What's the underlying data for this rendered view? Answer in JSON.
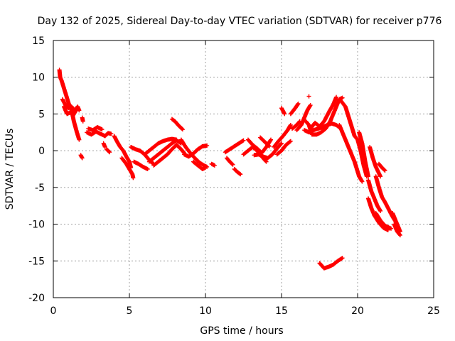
{
  "chart_data": {
    "type": "scatter",
    "title": "Day 132 of 2025, Sidereal Day-to-day VTEC variation (SDTVAR) for receiver p776",
    "xlabel": "GPS time / hours",
    "ylabel": "SDTVAR / TECUs",
    "xlim": [
      0,
      25
    ],
    "ylim": [
      -20,
      15
    ],
    "xticks": [
      0,
      5,
      10,
      15,
      20,
      25
    ],
    "yticks": [
      15,
      10,
      5,
      0,
      -5,
      -10,
      -15,
      -20
    ],
    "grid": true,
    "marker": "+",
    "color": "#ff0000",
    "series": [
      {
        "name": "SDTVAR",
        "tracks": [
          [
            [
              0.4,
              11
            ],
            [
              0.45,
              10
            ],
            [
              0.55,
              9.5
            ],
            [
              0.7,
              8.5
            ],
            [
              0.85,
              7.5
            ],
            [
              1.0,
              6.5
            ],
            [
              1.2,
              5.5
            ],
            [
              1.35,
              4
            ],
            [
              1.55,
              2.5
            ],
            [
              1.7,
              1.5
            ]
          ],
          [
            [
              0.6,
              7
            ],
            [
              0.8,
              6.2
            ],
            [
              1.0,
              5.8
            ],
            [
              1.2,
              6.0
            ],
            [
              1.4,
              5.5
            ],
            [
              1.6,
              6.0
            ],
            [
              1.7,
              5.5
            ]
          ],
          [
            [
              0.7,
              6
            ],
            [
              0.9,
              5
            ],
            [
              1.1,
              5.2
            ],
            [
              1.3,
              4.8
            ],
            [
              1.5,
              5.5
            ]
          ],
          [
            [
              1.9,
              4.5
            ],
            [
              1.95,
              4.0
            ]
          ],
          [
            [
              1.8,
              -0.6
            ],
            [
              1.9,
              -1.0
            ]
          ],
          [
            [
              2.2,
              2.5
            ],
            [
              2.5,
              2.2
            ],
            [
              2.8,
              2.6
            ],
            [
              3.1,
              2.3
            ],
            [
              3.4,
              2.0
            ],
            [
              3.6,
              2.4
            ],
            [
              3.8,
              2.3
            ]
          ],
          [
            [
              2.3,
              3.0
            ],
            [
              2.6,
              2.8
            ],
            [
              2.9,
              3.2
            ],
            [
              3.2,
              2.9
            ]
          ],
          [
            [
              3.3,
              1.0
            ],
            [
              3.4,
              0.5
            ]
          ],
          [
            [
              3.5,
              0.2
            ],
            [
              3.7,
              -0.2
            ]
          ],
          [
            [
              4.0,
              2.0
            ],
            [
              4.2,
              1.2
            ],
            [
              4.4,
              0.5
            ],
            [
              4.6,
              0.0
            ],
            [
              4.8,
              -0.8
            ],
            [
              5.0,
              -1.5
            ],
            [
              5.1,
              -2.3
            ]
          ],
          [
            [
              4.5,
              -1.0
            ],
            [
              4.8,
              -1.8
            ],
            [
              5.0,
              -2.5
            ],
            [
              5.2,
              -3.2
            ],
            [
              5.25,
              -3.7
            ]
          ],
          [
            [
              5.1,
              0.5
            ],
            [
              5.4,
              0.2
            ],
            [
              5.7,
              0.0
            ],
            [
              6.0,
              -0.5
            ],
            [
              6.2,
              -1.0
            ],
            [
              6.4,
              -1.5
            ],
            [
              6.6,
              -1.8
            ]
          ],
          [
            [
              5.3,
              -1.5
            ],
            [
              5.6,
              -1.8
            ],
            [
              5.9,
              -2.2
            ],
            [
              6.2,
              -2.5
            ]
          ],
          [
            [
              6.0,
              -0.5
            ],
            [
              6.3,
              0.0
            ],
            [
              6.6,
              0.5
            ],
            [
              6.9,
              1.0
            ],
            [
              7.2,
              1.3
            ],
            [
              7.5,
              1.5
            ],
            [
              7.8,
              1.6
            ],
            [
              8.1,
              1.5
            ]
          ],
          [
            [
              6.3,
              -1.5
            ],
            [
              6.6,
              -1.0
            ],
            [
              6.9,
              -0.5
            ],
            [
              7.2,
              0.0
            ],
            [
              7.5,
              0.5
            ],
            [
              7.8,
              1.0
            ],
            [
              8.1,
              1.4
            ],
            [
              8.4,
              1.0
            ]
          ],
          [
            [
              6.6,
              -2.0
            ],
            [
              6.9,
              -1.5
            ],
            [
              7.2,
              -1.0
            ],
            [
              7.5,
              -0.5
            ],
            [
              7.8,
              0.2
            ],
            [
              8.1,
              0.8
            ],
            [
              8.4,
              0.2
            ],
            [
              8.6,
              -0.3
            ]
          ],
          [
            [
              7.8,
              4.3
            ],
            [
              8.0,
              4.0
            ],
            [
              8.2,
              3.5
            ],
            [
              8.5,
              2.9
            ]
          ],
          [
            [
              8.4,
              1.5
            ],
            [
              8.7,
              0.5
            ],
            [
              9.0,
              -0.3
            ],
            [
              9.3,
              -1.0
            ],
            [
              9.6,
              -1.6
            ],
            [
              9.9,
              -2.0
            ],
            [
              10.1,
              -2.2
            ]
          ],
          [
            [
              8.6,
              -0.5
            ],
            [
              8.9,
              -0.8
            ],
            [
              9.2,
              -0.4
            ],
            [
              9.5,
              0.2
            ],
            [
              9.8,
              0.6
            ],
            [
              10.1,
              0.7
            ]
          ],
          [
            [
              9.2,
              -1.5
            ],
            [
              9.5,
              -2.0
            ],
            [
              9.8,
              -2.5
            ],
            [
              10.0,
              -2.3
            ]
          ],
          [
            [
              10.4,
              -1.8
            ],
            [
              10.6,
              -2.0
            ]
          ],
          [
            [
              11.3,
              -0.2
            ],
            [
              11.6,
              0.2
            ],
            [
              11.9,
              0.6
            ],
            [
              12.2,
              1.0
            ],
            [
              12.5,
              1.4
            ]
          ],
          [
            [
              11.4,
              -1.0
            ],
            [
              11.6,
              -1.5
            ],
            [
              11.8,
              -1.9
            ]
          ],
          [
            [
              11.9,
              -2.5
            ],
            [
              12.1,
              -2.9
            ],
            [
              12.3,
              -3.2
            ]
          ],
          [
            [
              12.5,
              -0.5
            ],
            [
              12.8,
              0.0
            ],
            [
              13.1,
              0.5
            ],
            [
              13.4,
              0.0
            ],
            [
              13.7,
              -0.8
            ],
            [
              14.0,
              -1.5
            ]
          ],
          [
            [
              12.8,
              1.5
            ],
            [
              13.1,
              0.8
            ],
            [
              13.4,
              0.3
            ],
            [
              13.7,
              -0.3
            ],
            [
              14.0,
              0.5
            ],
            [
              14.3,
              1.5
            ]
          ],
          [
            [
              13.2,
              -0.6
            ],
            [
              13.5,
              -0.5
            ],
            [
              13.8,
              -0.8
            ],
            [
              14.1,
              -1.0
            ],
            [
              14.4,
              -0.5
            ],
            [
              14.7,
              0.3
            ],
            [
              15.0,
              1.0
            ]
          ],
          [
            [
              13.6,
              1.8
            ],
            [
              13.9,
              1.2
            ],
            [
              14.2,
              0.6
            ]
          ],
          [
            [
              14.5,
              0.5
            ],
            [
              14.8,
              1.3
            ],
            [
              15.1,
              2.0
            ],
            [
              15.4,
              2.8
            ],
            [
              15.6,
              3.5
            ]
          ],
          [
            [
              14.7,
              -0.5
            ],
            [
              15.0,
              0.0
            ],
            [
              15.3,
              0.8
            ],
            [
              15.6,
              1.3
            ]
          ],
          [
            [
              15.0,
              5.8
            ],
            [
              15.2,
              5.0
            ]
          ],
          [
            [
              15.6,
              5.0
            ],
            [
              15.9,
              5.8
            ],
            [
              16.1,
              6.4
            ]
          ],
          [
            [
              15.7,
              3.0
            ],
            [
              16.0,
              3.5
            ],
            [
              16.2,
              4.0
            ]
          ],
          [
            [
              16.0,
              2.8
            ],
            [
              16.3,
              3.5
            ],
            [
              16.5,
              4.5
            ],
            [
              16.7,
              5.5
            ],
            [
              16.9,
              6.2
            ]
          ],
          [
            [
              16.5,
              2.8
            ],
            [
              16.8,
              2.5
            ],
            [
              17.1,
              2.8
            ],
            [
              17.4,
              3.0
            ],
            [
              17.7,
              3.2
            ],
            [
              18.0,
              3.5
            ],
            [
              18.3,
              3.7
            ],
            [
              18.6,
              3.5
            ],
            [
              18.9,
              3.0
            ]
          ],
          [
            [
              16.6,
              4.0
            ],
            [
              16.8,
              3.5
            ],
            [
              17.0,
              2.2
            ],
            [
              17.3,
              2.2
            ],
            [
              17.6,
              2.5
            ],
            [
              17.9,
              3.0
            ],
            [
              18.2,
              4.0
            ],
            [
              18.5,
              5.5
            ],
            [
              18.8,
              7.0
            ],
            [
              19.0,
              7.2
            ]
          ],
          [
            [
              16.9,
              3.0
            ],
            [
              17.2,
              3.8
            ],
            [
              17.5,
              3.3
            ],
            [
              17.8,
              4.0
            ],
            [
              18.1,
              5.2
            ],
            [
              18.4,
              6.3
            ],
            [
              18.6,
              7.3
            ]
          ],
          [
            [
              16.8,
              7.4
            ]
          ],
          [
            [
              17.5,
              -15.3
            ],
            [
              17.8,
              -16.0
            ],
            [
              18.1,
              -15.8
            ],
            [
              18.4,
              -15.5
            ],
            [
              18.7,
              -15.0
            ],
            [
              19.0,
              -14.6
            ]
          ],
          [
            [
              18.8,
              3.5
            ],
            [
              19.0,
              2.5
            ],
            [
              19.3,
              1.0
            ],
            [
              19.6,
              -0.5
            ],
            [
              19.8,
              -1.5
            ],
            [
              20.1,
              -3.5
            ],
            [
              20.3,
              -4.2
            ]
          ],
          [
            [
              18.9,
              6.8
            ],
            [
              19.2,
              6.0
            ],
            [
              19.5,
              4.0
            ],
            [
              19.8,
              2.0
            ],
            [
              20.0,
              1.5
            ],
            [
              20.2,
              0.0
            ],
            [
              20.4,
              -2.0
            ],
            [
              20.6,
              -3.5
            ]
          ],
          [
            [
              20.1,
              2.5
            ],
            [
              20.3,
              1.0
            ],
            [
              20.5,
              -1.5
            ],
            [
              20.7,
              -3.5
            ]
          ],
          [
            [
              20.7,
              -6.5
            ],
            [
              20.9,
              -7.8
            ],
            [
              21.1,
              -8.8
            ],
            [
              21.4,
              -9.8
            ],
            [
              21.7,
              -10.5
            ],
            [
              22.0,
              -10.8
            ]
          ],
          [
            [
              20.7,
              -4.0
            ],
            [
              20.9,
              -5.5
            ],
            [
              21.1,
              -6.5
            ],
            [
              21.3,
              -7.5
            ],
            [
              21.5,
              -8.2
            ]
          ],
          [
            [
              20.8,
              0.5
            ],
            [
              21.0,
              -1.0
            ],
            [
              21.2,
              -2.2
            ],
            [
              21.5,
              -3.5
            ]
          ],
          [
            [
              21.2,
              -3.5
            ],
            [
              21.4,
              -5.0
            ],
            [
              21.6,
              -6.3
            ],
            [
              21.8,
              -7.0
            ],
            [
              22.0,
              -7.8
            ],
            [
              22.3,
              -9.0
            ],
            [
              22.6,
              -10.0
            ]
          ],
          [
            [
              21.4,
              -1.8
            ],
            [
              21.6,
              -2.3
            ],
            [
              21.8,
              -2.7
            ]
          ],
          [
            [
              21.2,
              -8.5
            ],
            [
              21.5,
              -9.5
            ],
            [
              21.8,
              -10.2
            ],
            [
              22.2,
              -10.6
            ]
          ],
          [
            [
              22.3,
              -8.5
            ],
            [
              22.5,
              -9.5
            ],
            [
              22.7,
              -10.5
            ],
            [
              22.8,
              -11.0
            ]
          ],
          [
            [
              22.4,
              -10.0
            ],
            [
              22.6,
              -11.0
            ],
            [
              22.8,
              -11.5
            ]
          ]
        ]
      }
    ]
  }
}
